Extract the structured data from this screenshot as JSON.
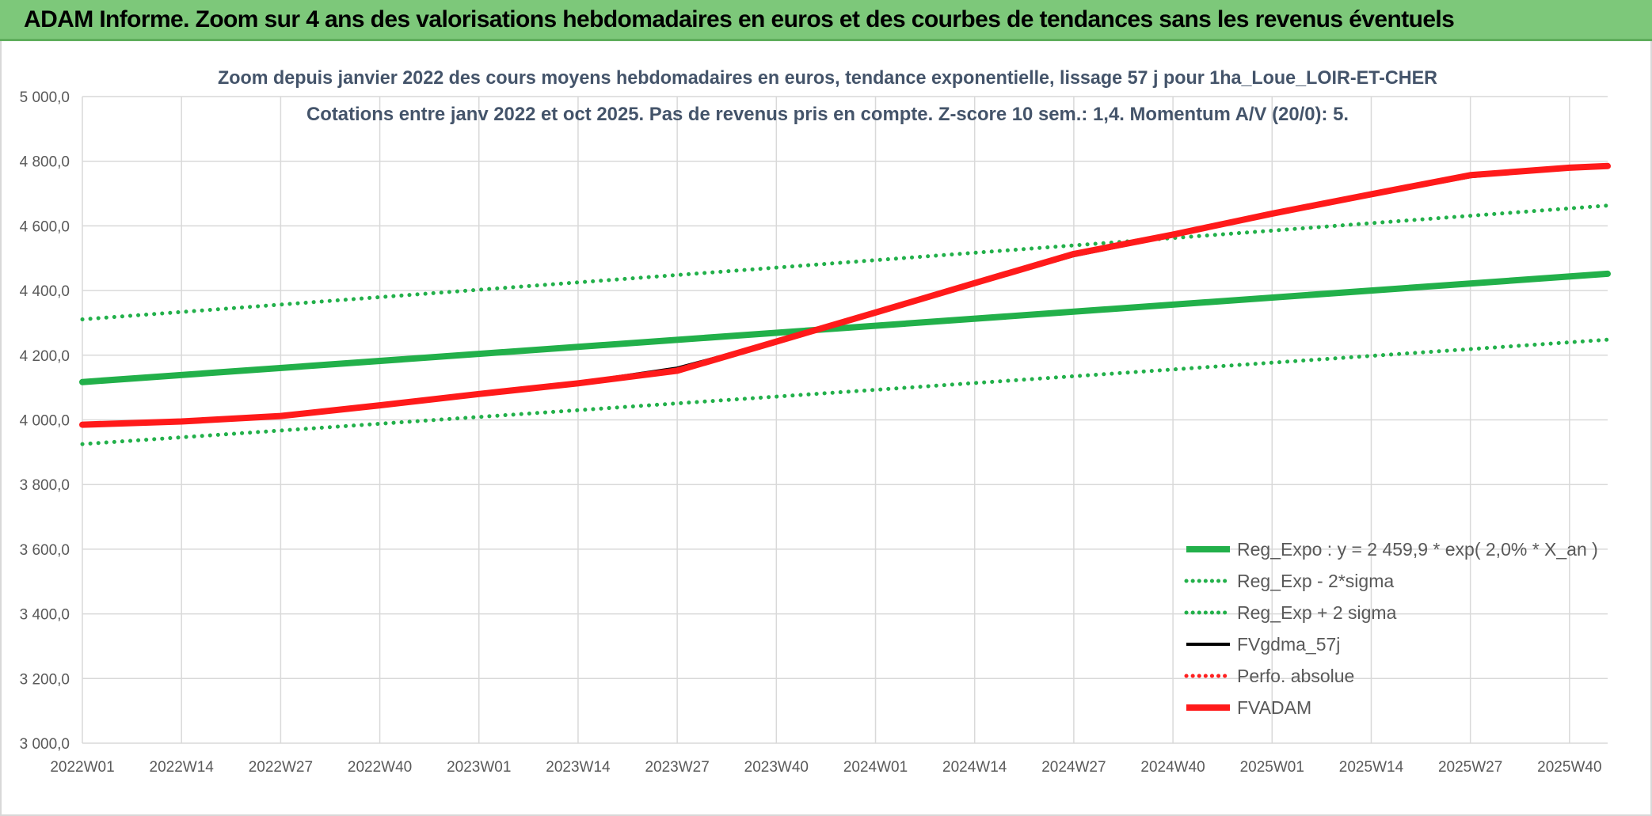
{
  "header": {
    "title": "ADAM Informe. Zoom sur 4 ans des valorisations hebdomadaires en euros et des courbes de tendances sans les revenus éventuels"
  },
  "chart_data": {
    "type": "line",
    "title": "Zoom depuis janvier 2022 des cours moyens hebdomadaires en euros, tendance exponentielle, lissage 57 j pour 1ha_Loue_LOIR-ET-CHER",
    "subtitle": "Cotations entre janv 2022 et oct 2025. Pas de revenus pris en compte. Z-score 10 sem.: 1,4. Momentum A/V (20/0): 5.",
    "xlabel": "",
    "ylabel": "",
    "ylim": [
      3000,
      5000
    ],
    "y_ticks": [
      "3 000,0",
      "3 200,0",
      "3 400,0",
      "3 600,0",
      "3 800,0",
      "4 000,0",
      "4 200,0",
      "4 400,0",
      "4 600,0",
      "4 800,0",
      "5 000,0"
    ],
    "x_ticks": [
      "2022W01",
      "2022W14",
      "2022W27",
      "2022W40",
      "2023W01",
      "2023W14",
      "2023W27",
      "2023W40",
      "2024W01",
      "2024W14",
      "2024W27",
      "2024W40",
      "2025W01",
      "2025W14",
      "2025W27",
      "2025W40"
    ],
    "x_range_weeks": [
      0,
      200
    ],
    "grid": true,
    "legend_position": "bottom-right",
    "series": [
      {
        "name": "Reg_Expo : y = 2 459,9 * exp( 2,0% *  X_an )",
        "color": "#22b04a",
        "style": "solid-thick",
        "points": [
          [
            0,
            4117
          ],
          [
            200,
            4452
          ]
        ]
      },
      {
        "name": "Reg_Exp - 2*sigma",
        "color": "#22b04a",
        "style": "dotted",
        "points": [
          [
            0,
            3925
          ],
          [
            200,
            4248
          ]
        ]
      },
      {
        "name": "Reg_Exp + 2 sigma",
        "color": "#22b04a",
        "style": "dotted",
        "points": [
          [
            0,
            4311
          ],
          [
            200,
            4663
          ]
        ]
      },
      {
        "name": "FVgdma_57j",
        "color": "#000000",
        "style": "solid",
        "points": [
          [
            0,
            3985
          ],
          [
            13,
            3995
          ],
          [
            26,
            4012
          ],
          [
            39,
            4045
          ],
          [
            52,
            4080
          ],
          [
            65,
            4115
          ],
          [
            78,
            4160
          ],
          [
            91,
            4242
          ],
          [
            104,
            4330
          ],
          [
            117,
            4420
          ],
          [
            130,
            4508
          ],
          [
            143,
            4570
          ],
          [
            156,
            4635
          ],
          [
            169,
            4695
          ],
          [
            182,
            4752
          ],
          [
            195,
            4780
          ],
          [
            200,
            4785
          ]
        ]
      },
      {
        "name": "Perfo. absolue",
        "color": "#ff2020",
        "style": "dotted",
        "points": []
      },
      {
        "name": "FVADAM",
        "color": "#ff1a1a",
        "style": "solid-thick",
        "points": [
          [
            0,
            3985
          ],
          [
            13,
            3995
          ],
          [
            26,
            4012
          ],
          [
            39,
            4045
          ],
          [
            52,
            4080
          ],
          [
            65,
            4113
          ],
          [
            78,
            4152
          ],
          [
            91,
            4242
          ],
          [
            104,
            4332
          ],
          [
            117,
            4423
          ],
          [
            130,
            4513
          ],
          [
            143,
            4573
          ],
          [
            156,
            4638
          ],
          [
            169,
            4698
          ],
          [
            182,
            4757
          ],
          [
            195,
            4780
          ],
          [
            200,
            4785
          ]
        ]
      }
    ]
  }
}
